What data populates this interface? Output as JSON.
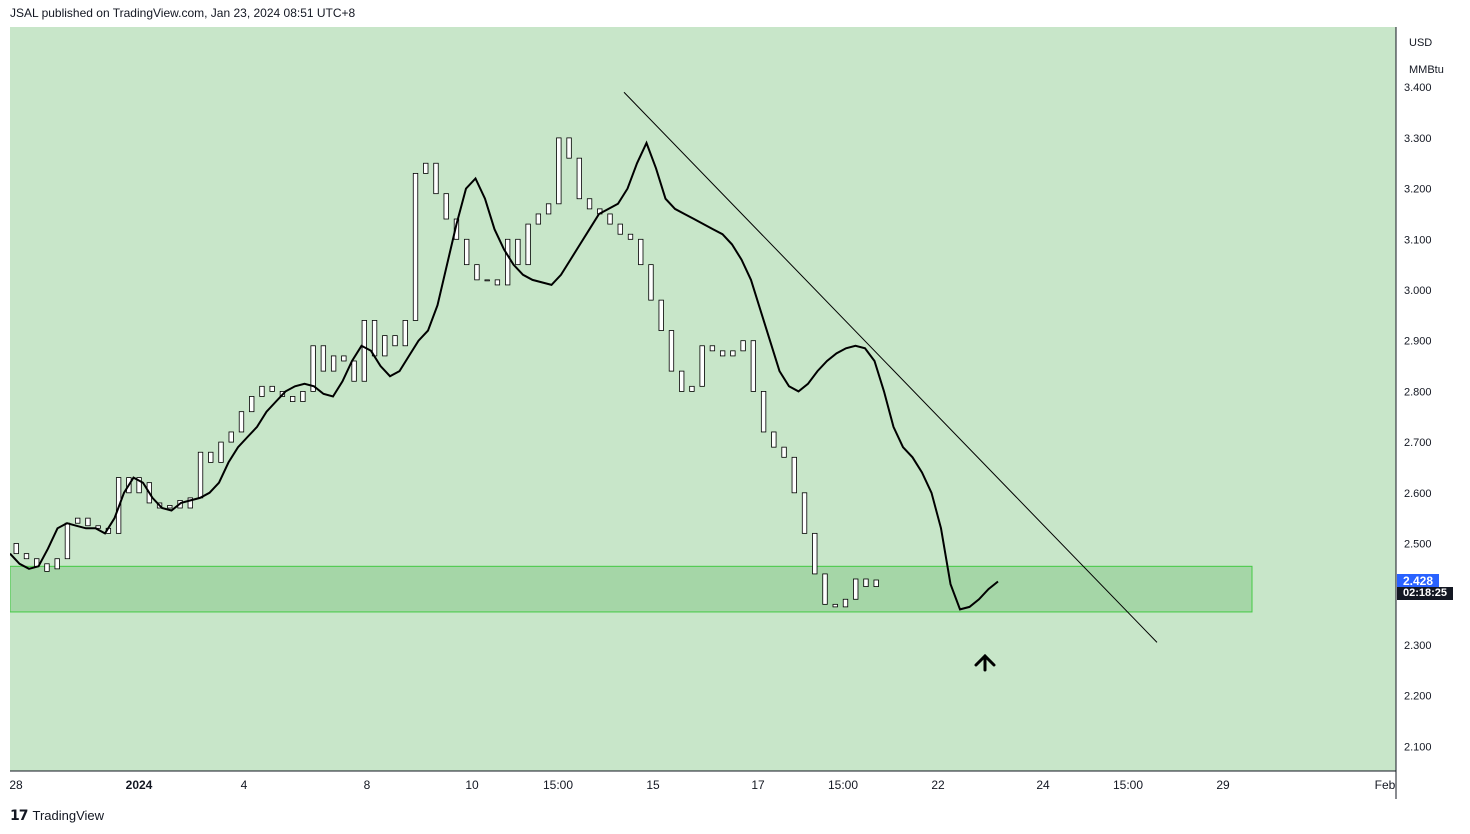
{
  "header": {
    "published": "JSAL published on TradingView.com, Jan 23, 2024 08:51 UTC+8"
  },
  "currency": {
    "line1": "USD",
    "line2": "MMBtu"
  },
  "last_price": {
    "value": "2.428",
    "countdown": "02:18:25"
  },
  "footer": {
    "brand": "TradingView"
  },
  "colors": {
    "background": "#c8e6c9",
    "zone_fill": "#a5d6a7",
    "zone_border": "#43c943",
    "price_tag": "#2962ff"
  },
  "chart_data": {
    "type": "line",
    "y_ticks": [
      "3.400",
      "3.300",
      "3.200",
      "3.100",
      "3.000",
      "2.900",
      "2.800",
      "2.700",
      "2.600",
      "2.500",
      "2.300",
      "2.200",
      "2.100"
    ],
    "x_ticks": [
      "28",
      "2024",
      "4",
      "8",
      "10",
      "15:00",
      "15",
      "17",
      "15:00",
      "22",
      "24",
      "15:00",
      "29",
      "Feb"
    ],
    "ylim": [
      2.05,
      3.44
    ],
    "series": [
      {
        "values": [
          2.48,
          2.46,
          2.45,
          2.455,
          2.49,
          2.53,
          2.54,
          2.535,
          2.53,
          2.53,
          2.52,
          2.55,
          2.6,
          2.63,
          2.62,
          2.59,
          2.57,
          2.565,
          2.58,
          2.585,
          2.59,
          2.6,
          2.62,
          2.66,
          2.69,
          2.71,
          2.73,
          2.76,
          2.78,
          2.8,
          2.81,
          2.815,
          2.81,
          2.795,
          2.79,
          2.82,
          2.86,
          2.89,
          2.88,
          2.85,
          2.83,
          2.84,
          2.87,
          2.9,
          2.92,
          2.97,
          3.05,
          3.13,
          3.2,
          3.22,
          3.18,
          3.12,
          3.08,
          3.05,
          3.03,
          3.02,
          3.015,
          3.01,
          3.03,
          3.06,
          3.09,
          3.12,
          3.15,
          3.16,
          3.17,
          3.2,
          3.25,
          3.29,
          3.24,
          3.18,
          3.16,
          3.15,
          3.14,
          3.13,
          3.12,
          3.11,
          3.09,
          3.06,
          3.02,
          2.96,
          2.9,
          2.84,
          2.81,
          2.8,
          2.815,
          2.84,
          2.86,
          2.875,
          2.885,
          2.89,
          2.885,
          2.86,
          2.8,
          2.73,
          2.69,
          2.67,
          2.64,
          2.6,
          2.53,
          2.42,
          2.37,
          2.375,
          2.39,
          2.41,
          2.425
        ]
      }
    ],
    "candles": [
      [
        2.5,
        2.48
      ],
      [
        2.48,
        2.47
      ],
      [
        2.47,
        2.455
      ],
      [
        2.46,
        2.445
      ],
      [
        2.45,
        2.47
      ],
      [
        2.47,
        2.54
      ],
      [
        2.54,
        2.55
      ],
      [
        2.55,
        2.535
      ],
      [
        2.535,
        2.53
      ],
      [
        2.53,
        2.52
      ],
      [
        2.52,
        2.63
      ],
      [
        2.63,
        2.6
      ],
      [
        2.6,
        2.63
      ],
      [
        2.62,
        2.58
      ],
      [
        2.58,
        2.57
      ],
      [
        2.57,
        2.575
      ],
      [
        2.57,
        2.585
      ],
      [
        2.57,
        2.59
      ],
      [
        2.59,
        2.68
      ],
      [
        2.68,
        2.66
      ],
      [
        2.66,
        2.7
      ],
      [
        2.7,
        2.72
      ],
      [
        2.72,
        2.76
      ],
      [
        2.76,
        2.79
      ],
      [
        2.79,
        2.81
      ],
      [
        2.81,
        2.8
      ],
      [
        2.8,
        2.79
      ],
      [
        2.79,
        2.78
      ],
      [
        2.78,
        2.8
      ],
      [
        2.8,
        2.89
      ],
      [
        2.89,
        2.84
      ],
      [
        2.84,
        2.87
      ],
      [
        2.87,
        2.86
      ],
      [
        2.86,
        2.82
      ],
      [
        2.82,
        2.94
      ],
      [
        2.94,
        2.87
      ],
      [
        2.87,
        2.91
      ],
      [
        2.91,
        2.89
      ],
      [
        2.89,
        2.94
      ],
      [
        2.94,
        3.23
      ],
      [
        3.23,
        3.25
      ],
      [
        3.25,
        3.19
      ],
      [
        3.19,
        3.14
      ],
      [
        3.14,
        3.1
      ],
      [
        3.1,
        3.05
      ],
      [
        3.05,
        3.02
      ],
      [
        3.02,
        3.02
      ],
      [
        3.02,
        3.01
      ],
      [
        3.01,
        3.1
      ],
      [
        3.1,
        3.05
      ],
      [
        3.05,
        3.13
      ],
      [
        3.13,
        3.15
      ],
      [
        3.15,
        3.17
      ],
      [
        3.17,
        3.3
      ],
      [
        3.3,
        3.26
      ],
      [
        3.26,
        3.18
      ],
      [
        3.18,
        3.16
      ],
      [
        3.16,
        3.15
      ],
      [
        3.15,
        3.13
      ],
      [
        3.13,
        3.11
      ],
      [
        3.11,
        3.1
      ],
      [
        3.1,
        3.05
      ],
      [
        3.05,
        2.98
      ],
      [
        2.98,
        2.92
      ],
      [
        2.92,
        2.84
      ],
      [
        2.84,
        2.8
      ],
      [
        2.8,
        2.81
      ],
      [
        2.81,
        2.89
      ],
      [
        2.89,
        2.88
      ],
      [
        2.88,
        2.87
      ],
      [
        2.87,
        2.88
      ],
      [
        2.88,
        2.9
      ],
      [
        2.9,
        2.8
      ],
      [
        2.8,
        2.72
      ],
      [
        2.72,
        2.69
      ],
      [
        2.69,
        2.67
      ],
      [
        2.67,
        2.6
      ],
      [
        2.6,
        2.52
      ],
      [
        2.52,
        2.44
      ],
      [
        2.44,
        2.38
      ],
      [
        2.38,
        2.375
      ],
      [
        2.375,
        2.39
      ],
      [
        2.39,
        2.43
      ],
      [
        2.43,
        2.415
      ],
      [
        2.415,
        2.428
      ]
    ],
    "annotations": {
      "zone": {
        "y_top": 2.455,
        "y_bottom": 2.365
      },
      "trendline": {
        "from": 3.39,
        "to": 2.305
      },
      "arrow": "up"
    }
  }
}
